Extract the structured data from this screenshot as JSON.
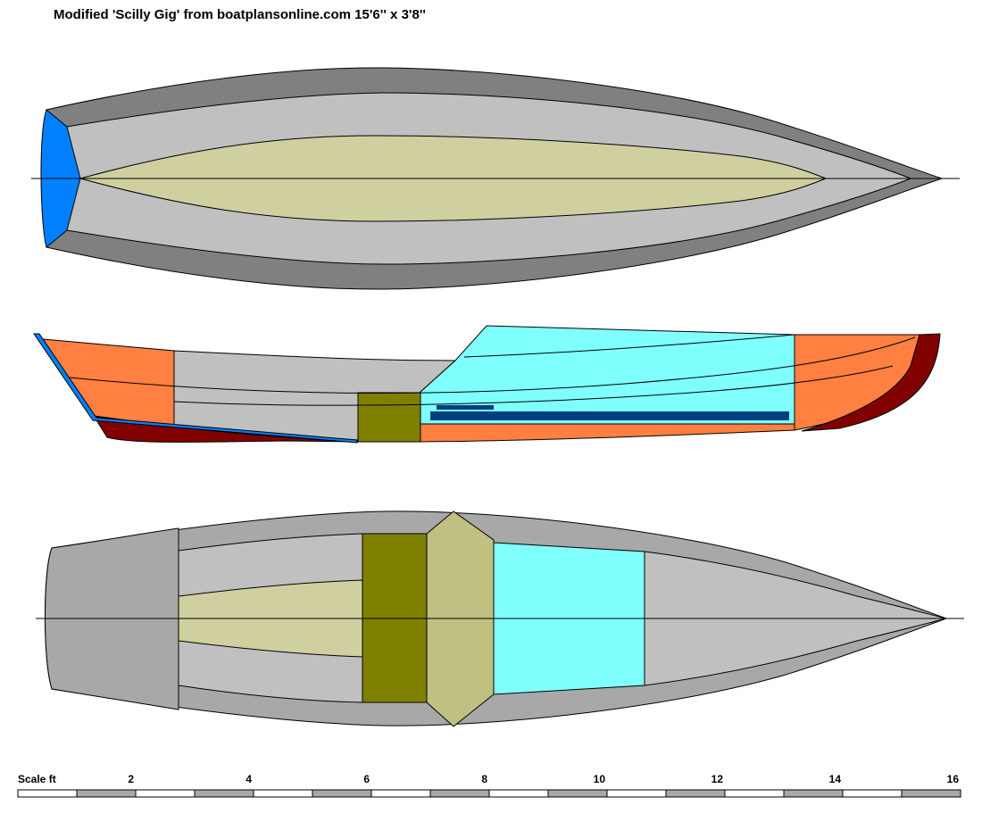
{
  "title": "Modified 'Scilly Gig' from boatplansonline.com 15'6'' x 3'8''",
  "scale": {
    "label": "Scale ft",
    "ticks": [
      "2",
      "4",
      "6",
      "8",
      "10",
      "12",
      "14",
      "16"
    ]
  },
  "colors": {
    "hull_dark": "#808080",
    "hull_light": "#c0c0c0",
    "floor": "#cfcfa0",
    "transom_blue": "#0080ff",
    "topside_orange": "#ff8040",
    "keel_maroon": "#800000",
    "cabin_cyan": "#80ffff",
    "console_olive": "#808000",
    "seat_khaki": "#c0c080",
    "bench_navy": "#004080",
    "deck_gray": "#a8a8a8"
  }
}
